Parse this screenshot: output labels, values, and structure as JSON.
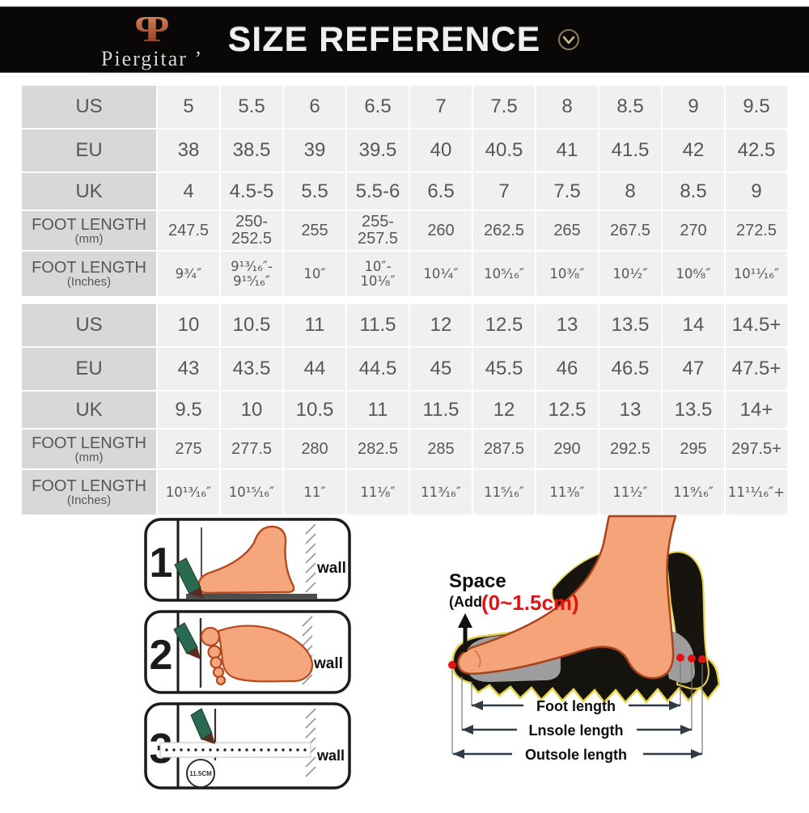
{
  "header": {
    "brand": "Piergitar ’",
    "title": "SIZE REFERENCE"
  },
  "tables": [
    {
      "rows": [
        {
          "label": "US",
          "sub": "",
          "values": [
            "5",
            "5.5",
            "6",
            "6.5",
            "7",
            "7.5",
            "8",
            "8.5",
            "9",
            "9.5"
          ]
        },
        {
          "label": "EU",
          "sub": "",
          "values": [
            "38",
            "38.5",
            "39",
            "39.5",
            "40",
            "40.5",
            "41",
            "41.5",
            "42",
            "42.5"
          ]
        },
        {
          "label": "UK",
          "sub": "",
          "values": [
            "4",
            "4.5-5",
            "5.5",
            "5.5-6",
            "6.5",
            "7",
            "7.5",
            "8",
            "8.5",
            "9"
          ]
        },
        {
          "label": "FOOT LENGTH",
          "sub": "(mm)",
          "values": [
            "247.5",
            "250- 252.5",
            "255",
            "255- 257.5",
            "260",
            "262.5",
            "265",
            "267.5",
            "270",
            "272.5"
          ]
        },
        {
          "label": "FOOT LENGTH",
          "sub": "(Inches)",
          "values": [
            "9³⁄₄″",
            "9¹³⁄₁₆″- 9¹⁵⁄₁₆″",
            "10″",
            "10″- 10¹⁄₈″",
            "10¹⁄₄″",
            "10⁵⁄₁₆″",
            "10³⁄₈″",
            "10¹⁄₂″",
            "10⁶⁄₈″",
            "10¹¹⁄₁₆″"
          ]
        }
      ]
    },
    {
      "rows": [
        {
          "label": "US",
          "sub": "",
          "values": [
            "10",
            "10.5",
            "11",
            "11.5",
            "12",
            "12.5",
            "13",
            "13.5",
            "14",
            "14.5+"
          ]
        },
        {
          "label": "EU",
          "sub": "",
          "values": [
            "43",
            "43.5",
            "44",
            "44.5",
            "45",
            "45.5",
            "46",
            "46.5",
            "47",
            "47.5+"
          ]
        },
        {
          "label": "UK",
          "sub": "",
          "values": [
            "9.5",
            "10",
            "10.5",
            "11",
            "11.5",
            "12",
            "12.5",
            "13",
            "13.5",
            "14+"
          ]
        },
        {
          "label": "FOOT LENGTH",
          "sub": "(mm)",
          "values": [
            "275",
            "277.5",
            "280",
            "282.5",
            "285",
            "287.5",
            "290",
            "292.5",
            "295",
            "297.5+"
          ]
        },
        {
          "label": "FOOT LENGTH",
          "sub": "(Inches)",
          "values": [
            "10¹³⁄₁₆″",
            "10¹⁵⁄₁₆″",
            "11″",
            "11¹⁄₈″",
            "11³⁄₁₆″",
            "11⁵⁄₁₆″",
            "11³⁄₈″",
            "11¹⁄₂″",
            "11⁹⁄₁₆″",
            "11¹¹⁄₁₆″+"
          ]
        }
      ]
    }
  ],
  "steps": [
    {
      "number": "1",
      "wall": "wall"
    },
    {
      "number": "2",
      "wall": "wall"
    },
    {
      "number": "3",
      "wall": "wall",
      "tape": "11.5CM"
    }
  ],
  "diagram": {
    "space": "Space",
    "add": "(Add",
    "range": "(0~1.5cm)",
    "labels": [
      "Foot length",
      "Lnsole length",
      "Outsole length"
    ]
  },
  "colors": {
    "brand_copper": "#b5613c",
    "accent_red": "#e31414",
    "sole_highlight_yellow": "#e8d24a",
    "pencil_green": "#2a6a50",
    "skin": "#f5a47a",
    "table_label_bg": "#d9d8d9",
    "table_cell_bg": "#f1f0f1"
  }
}
